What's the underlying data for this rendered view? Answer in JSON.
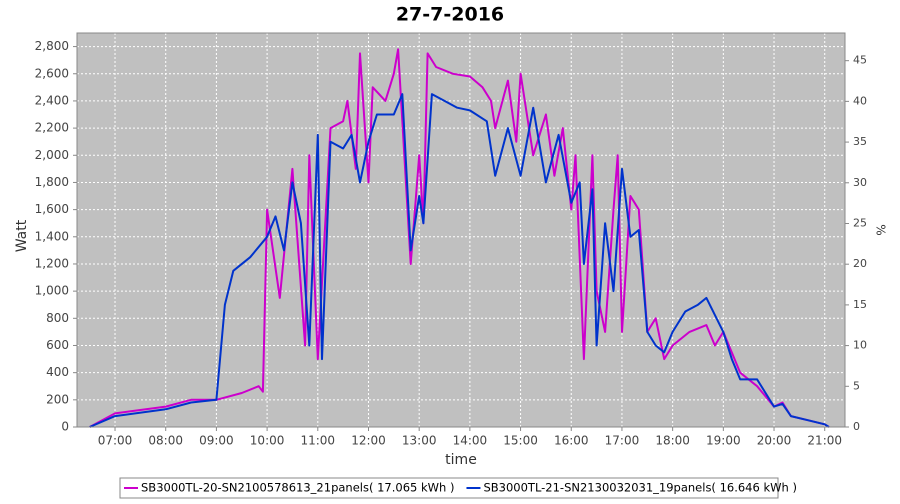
{
  "chart_data": {
    "type": "line",
    "title": "27-7-2016",
    "xlabel": "time",
    "ylabel": "Watt",
    "y2label": "%",
    "xlim": [
      "06:15",
      "21:24"
    ],
    "xticks": [
      "07:00",
      "08:00",
      "09:00",
      "10:00",
      "11:00",
      "12:00",
      "13:00",
      "14:00",
      "15:00",
      "16:00",
      "17:00",
      "18:00",
      "19:00",
      "20:00",
      "21:00"
    ],
    "ylim": [
      0,
      2900
    ],
    "yticks": [
      0,
      200,
      400,
      600,
      800,
      {
        "value": 1000,
        "label": "1,000"
      },
      {
        "value": 1200,
        "label": "1,200"
      },
      {
        "value": 1400,
        "label": "1,400"
      },
      {
        "value": 1600,
        "label": "1,600"
      },
      {
        "value": 1800,
        "label": "1,800"
      },
      {
        "value": 2000,
        "label": "2,000"
      },
      {
        "value": 2200,
        "label": "2,200"
      },
      {
        "value": 2400,
        "label": "2,400"
      },
      {
        "value": 2600,
        "label": "2,600"
      },
      {
        "value": 2800,
        "label": "2,800"
      }
    ],
    "y2lim": [
      0,
      48.4
    ],
    "y2ticks": [
      0,
      5,
      10,
      15,
      20,
      25,
      30,
      35,
      40,
      45
    ],
    "grid": true,
    "series": [
      {
        "name": "SB3000TL-20-SN2100578613_21panels( 17.065 kWh )",
        "color": "#cc00cc",
        "x": [
          "06:30",
          "07:00",
          "08:00",
          "08:30",
          "09:00",
          "09:30",
          "09:50",
          "09:55",
          "10:00",
          "10:15",
          "10:30",
          "10:45",
          "10:50",
          "11:00",
          "11:15",
          "11:30",
          "11:35",
          "11:45",
          "11:50",
          "12:00",
          "12:05",
          "12:20",
          "12:30",
          "12:35",
          "12:50",
          "13:00",
          "13:05",
          "13:10",
          "13:20",
          "13:40",
          "14:00",
          "14:15",
          "14:25",
          "14:30",
          "14:45",
          "14:55",
          "15:00",
          "15:15",
          "15:30",
          "15:40",
          "15:50",
          "16:00",
          "16:05",
          "16:15",
          "16:25",
          "16:30",
          "16:40",
          "16:50",
          "16:55",
          "17:00",
          "17:10",
          "17:20",
          "17:30",
          "17:40",
          "17:50",
          "18:00",
          "18:20",
          "18:40",
          "18:50",
          "19:00",
          "19:20",
          "19:40",
          "20:00",
          "20:10",
          "20:20",
          "20:40",
          "21:00",
          "21:05"
        ],
        "values": [
          0,
          100,
          150,
          200,
          200,
          250,
          300,
          260,
          1600,
          950,
          1900,
          600,
          2000,
          500,
          2200,
          2250,
          2400,
          1900,
          2750,
          1800,
          2500,
          2400,
          2600,
          2780,
          1200,
          2000,
          1500,
          2750,
          2650,
          2600,
          2580,
          2500,
          2400,
          2200,
          2550,
          2100,
          2600,
          2000,
          2300,
          1850,
          2200,
          1600,
          2000,
          500,
          2000,
          1000,
          700,
          1600,
          2000,
          700,
          1700,
          1600,
          700,
          800,
          500,
          600,
          700,
          750,
          600,
          700,
          400,
          300,
          150,
          180,
          80,
          50,
          20,
          0
        ]
      },
      {
        "name": "SB3000TL-21-SN2130032031_19panels( 16.646 kWh )",
        "color": "#0033cc",
        "x": [
          "06:30",
          "07:00",
          "08:00",
          "08:30",
          "09:00",
          "09:10",
          "09:20",
          "09:40",
          "10:00",
          "10:10",
          "10:20",
          "10:30",
          "10:40",
          "10:50",
          "11:00",
          "11:05",
          "11:15",
          "11:30",
          "11:40",
          "11:50",
          "12:00",
          "12:10",
          "12:30",
          "12:40",
          "12:50",
          "13:00",
          "13:05",
          "13:15",
          "13:30",
          "13:45",
          "14:00",
          "14:20",
          "14:30",
          "14:45",
          "15:00",
          "15:15",
          "15:30",
          "15:45",
          "16:00",
          "16:10",
          "16:15",
          "16:25",
          "16:30",
          "16:40",
          "16:50",
          "17:00",
          "17:10",
          "17:20",
          "17:30",
          "17:40",
          "17:50",
          "18:00",
          "18:15",
          "18:30",
          "18:40",
          "19:00",
          "19:10",
          "19:20",
          "19:40",
          "20:00",
          "20:10",
          "20:20",
          "20:40",
          "21:00",
          "21:05"
        ],
        "values": [
          0,
          80,
          130,
          180,
          200,
          900,
          1150,
          1250,
          1400,
          1550,
          1300,
          1800,
          1500,
          600,
          2150,
          500,
          2100,
          2050,
          2150,
          1800,
          2100,
          2300,
          2300,
          2450,
          1300,
          1700,
          1500,
          2450,
          2400,
          2350,
          2330,
          2250,
          1850,
          2200,
          1850,
          2350,
          1800,
          2150,
          1650,
          1800,
          1200,
          1750,
          600,
          1500,
          1000,
          1900,
          1400,
          1450,
          700,
          600,
          550,
          700,
          850,
          900,
          950,
          700,
          500,
          350,
          350,
          150,
          170,
          80,
          50,
          20,
          0
        ]
      }
    ]
  }
}
